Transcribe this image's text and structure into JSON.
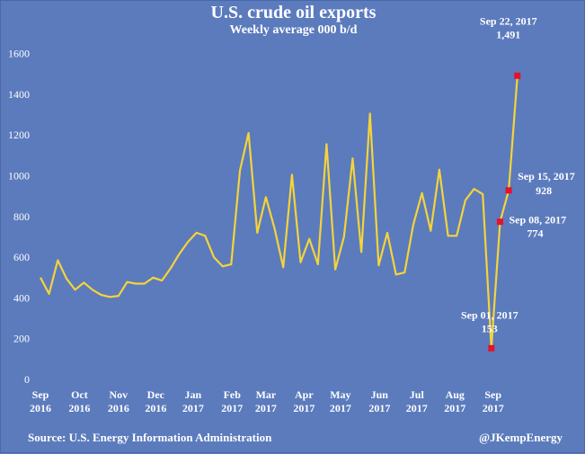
{
  "colors": {
    "background": "#5b7bbd",
    "line": "#f5d33a",
    "marker": "#e8102a",
    "text": "#ffffff"
  },
  "footer": {
    "source": "Source: U.S. Energy Information Administration",
    "credit": "@JKempEnergy"
  },
  "chart_data": {
    "type": "line",
    "title": "U.S. crude oil exports",
    "subtitle": "Weekly average 000 b/d",
    "xlabel": "",
    "ylabel": "",
    "ylim": [
      0,
      1600
    ],
    "yticks": [
      0,
      200,
      400,
      600,
      800,
      1000,
      1200,
      1400,
      1600
    ],
    "ytick_labels": [
      "0",
      "200",
      "400",
      "600",
      "800",
      "1000",
      "1200",
      "1400",
      "1600"
    ],
    "xticks": [
      {
        "month": "Sep",
        "year": "2016",
        "week": 0
      },
      {
        "month": "Oct",
        "year": "2016",
        "week": 4.5
      },
      {
        "month": "Nov",
        "year": "2016",
        "week": 9
      },
      {
        "month": "Dec",
        "year": "2016",
        "week": 13.3
      },
      {
        "month": "Jan",
        "year": "2017",
        "week": 17.6
      },
      {
        "month": "Feb",
        "year": "2017",
        "week": 22.1
      },
      {
        "month": "Mar",
        "year": "2017",
        "week": 26
      },
      {
        "month": "Apr",
        "year": "2017",
        "week": 30.4
      },
      {
        "month": "May",
        "year": "2017",
        "week": 34.6
      },
      {
        "month": "Jun",
        "year": "2017",
        "week": 39.1
      },
      {
        "month": "Jul",
        "year": "2017",
        "week": 43.4
      },
      {
        "month": "Aug",
        "year": "2017",
        "week": 47.8
      },
      {
        "month": "Sep",
        "year": "2017",
        "week": 52.2
      }
    ],
    "grid": false,
    "legend": "none",
    "series": [
      {
        "values": [
          500,
          420,
          585,
          495,
          440,
          475,
          440,
          415,
          405,
          410,
          478,
          470,
          470,
          500,
          485,
          545,
          615,
          675,
          720,
          705,
          600,
          555,
          565,
          1025,
          1210,
          720,
          895,
          740,
          550,
          1005,
          575,
          690,
          565,
          1155,
          540,
          700,
          1085,
          625,
          1305,
          560,
          720,
          515,
          525,
          760,
          915,
          730,
          1030,
          705,
          705,
          880,
          935,
          910,
          153,
          774,
          928,
          1491
        ]
      }
    ],
    "annotations": [
      {
        "label": "Sep 01, 2017",
        "value_text": "153",
        "index": 52
      },
      {
        "label": "Sep 08, 2017",
        "value_text": "774",
        "index": 53
      },
      {
        "label": "Sep 15, 2017",
        "value_text": "928",
        "index": 54
      },
      {
        "label": "Sep 22, 2017",
        "value_text": "1,491",
        "index": 55
      }
    ]
  }
}
